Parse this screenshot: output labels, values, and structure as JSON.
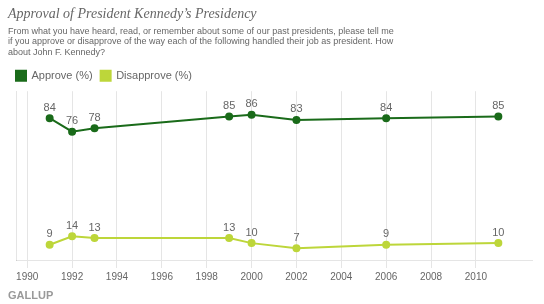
{
  "chart_data": {
    "type": "line",
    "title": "Approval of President Kennedy’s Presidency",
    "subtitle": "From what you have heard, read, or remember about some of our past presidents, please tell me\nif you approve or disapprove of the way each of the following handled their job as president. How\nabout John F. Kennedy?",
    "annotations": [
      "GALLUP"
    ],
    "x": [
      1991,
      1992,
      1993,
      1999,
      2000,
      2002,
      2006,
      2011
    ],
    "series": [
      {
        "name": "Approve (%)",
        "color": "#1a6b1a",
        "marker": "circle",
        "values": [
          84,
          76,
          78,
          85,
          86,
          83,
          84,
          85
        ]
      },
      {
        "name": "Disapprove (%)",
        "color": "#bdd63a",
        "marker": "circle",
        "values": [
          9,
          14,
          13,
          13,
          10,
          7,
          9,
          10
        ]
      }
    ],
    "xlim": [
      1989.5,
      2012.5
    ],
    "xticks": [
      1990,
      1992,
      1994,
      1996,
      1998,
      2000,
      2002,
      2004,
      2006,
      2008,
      2010
    ],
    "ylim": [
      0,
      100
    ],
    "tick_labels": "x",
    "grid": true,
    "data_labels": true,
    "legend": "top left"
  }
}
